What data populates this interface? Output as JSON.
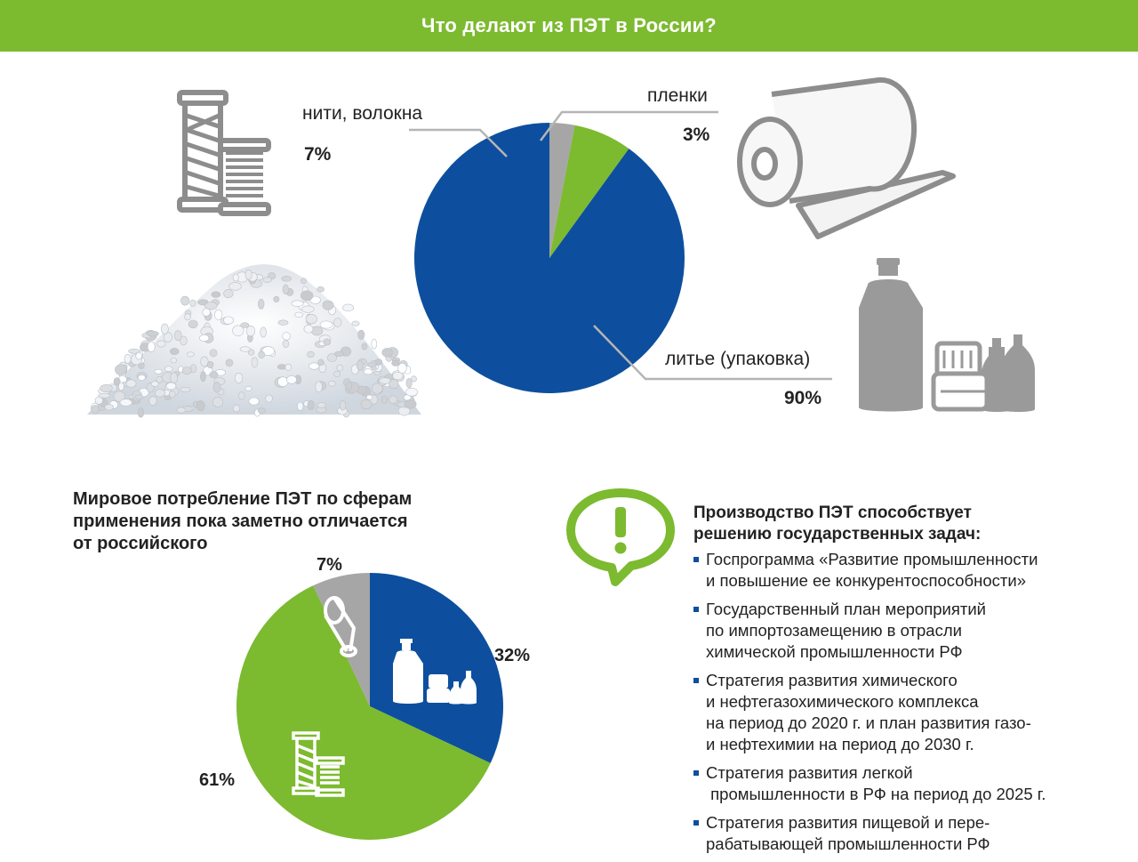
{
  "title": "Что делают из ПЭТ в России?",
  "colors": {
    "banner": "#7cba2f",
    "blue": "#0d4f9e",
    "green": "#7cba2f",
    "gray": "#a6a6a6",
    "bullet": "#0d4f9e"
  },
  "icons": [
    "thread-spools-icon",
    "pet-granules-image",
    "film-roll-icon",
    "bottles-containers-icon",
    "exclamation-speech-bubble-icon"
  ],
  "chart_data": [
    {
      "type": "pie",
      "slices": [
        {
          "label": "литье (упаковка)",
          "value": 90,
          "value_label": "90%",
          "color": "#0d4f9e"
        },
        {
          "label": "нити, волокна",
          "value": 7,
          "value_label": "7%",
          "color": "#7cba2f"
        },
        {
          "label": "пленки",
          "value": 3,
          "value_label": "3%",
          "color": "#a6a6a6"
        }
      ]
    },
    {
      "type": "pie",
      "title_lines": [
        "Мировое потребление ПЭТ по сферам",
        "применения пока заметно отличается",
        "от российского"
      ],
      "slices": [
        {
          "value": 32,
          "value_label": "32%",
          "color": "#0d4f9e",
          "icon": "bottles-containers-icon"
        },
        {
          "value": 61,
          "value_label": "61%",
          "color": "#7cba2f",
          "icon": "thread-spools-icon"
        },
        {
          "value": 7,
          "value_label": "7%",
          "color": "#a6a6a6",
          "icon": "film-roll-icon"
        }
      ]
    }
  ],
  "tasks": {
    "title_lines": [
      "Производство ПЭТ способствует",
      "решению государственных задач:"
    ],
    "items": [
      {
        "lines": [
          "Госпрограмма «Развитие промышленности",
          "и повышение ее конкурентоспособности»"
        ]
      },
      {
        "lines": [
          "Государственный план мероприятий",
          "по импортозамещению  в отрасли",
          "химической промышленности РФ"
        ]
      },
      {
        "lines": [
          "Стратегия развития химического",
          "и нефтегазохимического комплекса",
          "на период до 2020 г. и план развития газо-",
          "и нефтехимии  на период до 2030 г."
        ]
      },
      {
        "lines": [
          "Стратегия развития легкой",
          " промышленности в РФ на период до 2025 г."
        ]
      },
      {
        "lines": [
          "Стратегия развития пищевой и пере-",
          "рабатывающей промышленности РФ"
        ]
      }
    ]
  }
}
